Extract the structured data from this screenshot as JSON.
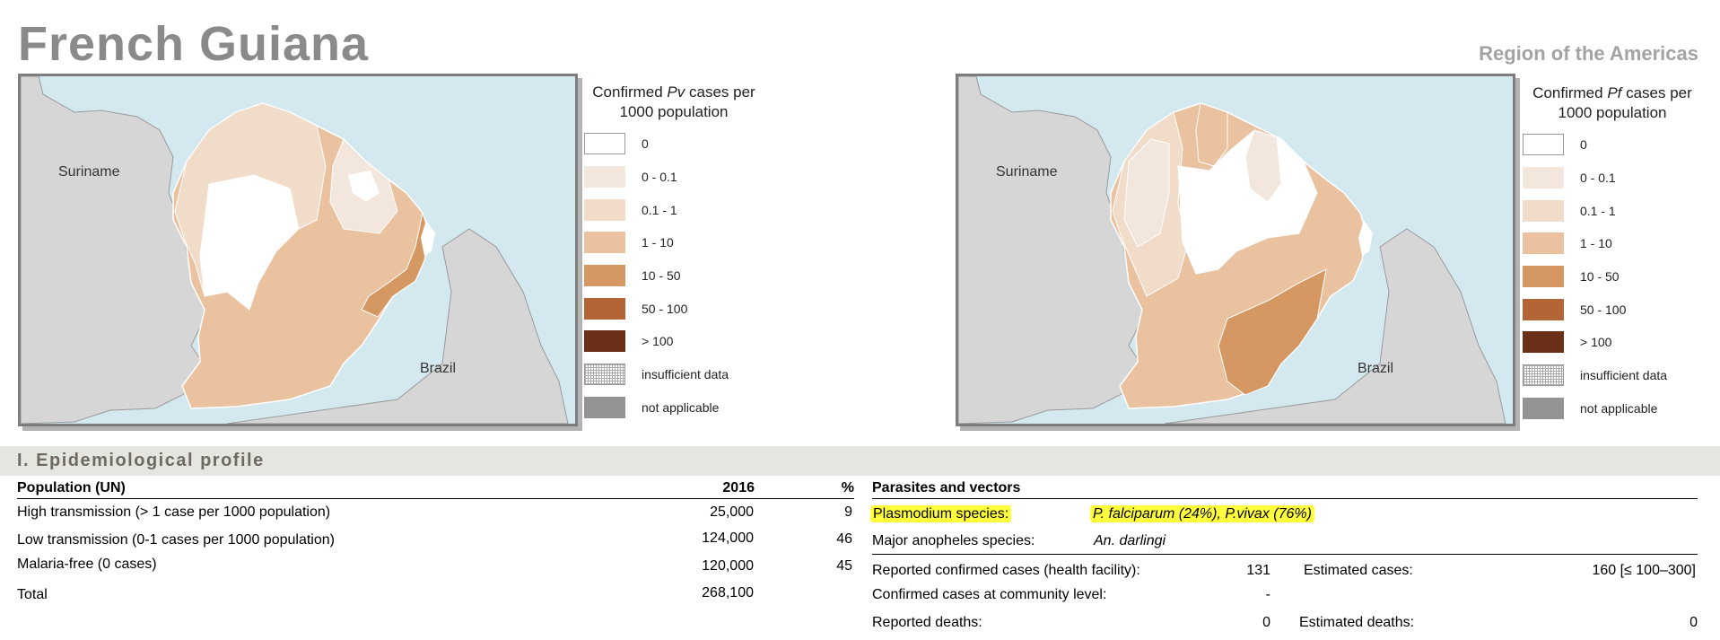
{
  "header": {
    "title": "French Guiana",
    "region": "Region of the Americas"
  },
  "maps": {
    "pv": {
      "legend_title_pre": "Confirmed ",
      "legend_title_species": "Pv",
      "legend_title_post": " cases per 1000 population",
      "labels": {
        "left": "Suriname",
        "bottom": "Brazil"
      }
    },
    "pf": {
      "legend_title_pre": "Confirmed ",
      "legend_title_species": "Pf",
      "legend_title_post": " cases per 1000 population",
      "labels": {
        "left": "Suriname",
        "bottom": "Brazil"
      }
    }
  },
  "legend": {
    "items": [
      {
        "label": "0",
        "color": "#ffffff"
      },
      {
        "label": "0 - 0.1",
        "color": "#f3e6dc"
      },
      {
        "label": "0.1 - 1",
        "color": "#f1dcc9"
      },
      {
        "label": "1 - 10",
        "color": "#ebc29f"
      },
      {
        "label": "10 - 50",
        "color": "#d59863"
      },
      {
        "label": "50 - 100",
        "color": "#b36536"
      },
      {
        "label": "> 100",
        "color": "#6b2e17"
      },
      {
        "label": "insufficient data",
        "color": "hatched"
      },
      {
        "label": "not applicable",
        "color": "#939393"
      }
    ]
  },
  "section": {
    "title": "I. Epidemiological profile"
  },
  "population": {
    "header": {
      "label": "Population (UN)",
      "year": "2016",
      "pct": "%"
    },
    "rows": [
      {
        "label": "High transmission (> 1 case per 1000 population)",
        "value": "25,000",
        "pct": "9"
      },
      {
        "label": "Low transmission (0-1 cases per 1000 population)",
        "value": "124,000",
        "pct": "46"
      },
      {
        "label": "Malaria-free (0 cases)",
        "value": "120,000",
        "pct": "45"
      },
      {
        "label": "Total",
        "value": "268,100",
        "pct": ""
      }
    ]
  },
  "parasites": {
    "header": "Parasites and vectors",
    "plasmodium_label": "Plasmodium species:",
    "plasmodium_value": "P. falciparum (24%), P.vivax (76%)",
    "anopheles_label": "Major anopheles species:",
    "anopheles_value": "An. darlingi",
    "reported_cases_label": "Reported confirmed cases (health facility):",
    "reported_cases_value": "131",
    "estimated_cases_label": "Estimated cases:",
    "estimated_cases_value": "160 [≤ 100–300]",
    "community_label": "Confirmed cases at community level:",
    "community_value": "-",
    "reported_deaths_label": "Reported deaths:",
    "reported_deaths_value": "0",
    "estimated_deaths_label": "Estimated deaths:",
    "estimated_deaths_value": "0"
  }
}
